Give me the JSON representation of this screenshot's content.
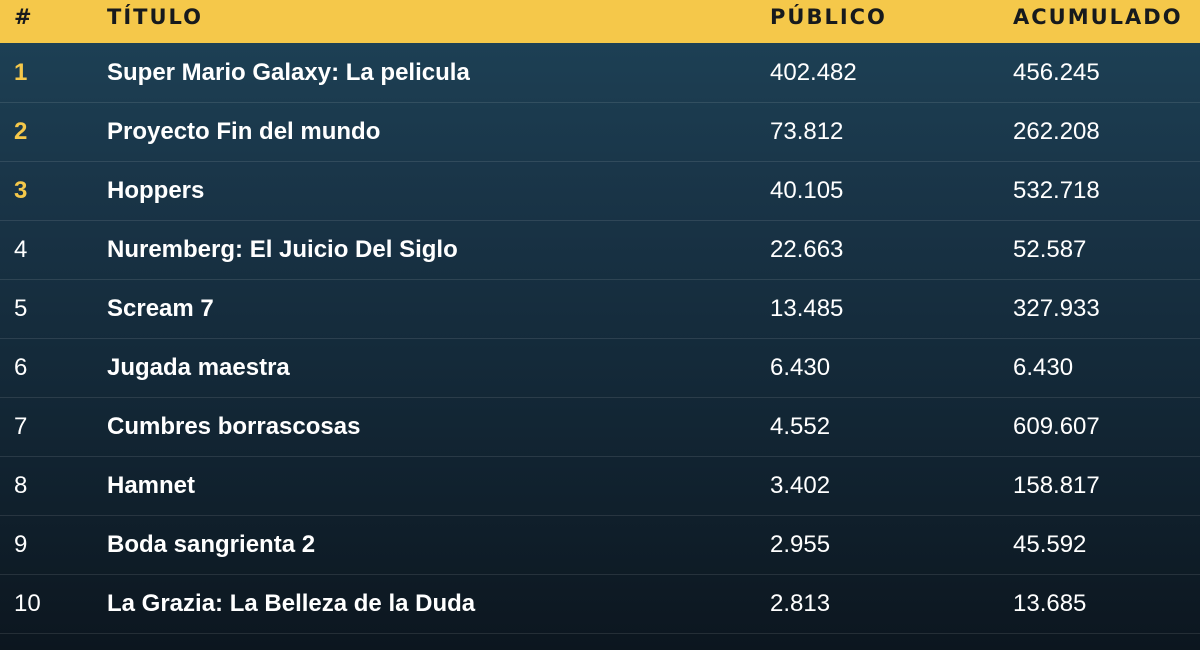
{
  "table": {
    "headers": {
      "rank": "#",
      "title": "TÍTULO",
      "public": "PÚBLICO",
      "total": "ACUMULADO"
    },
    "rows": [
      {
        "rank": "1",
        "title": "Super Mario Galaxy: La pelicula",
        "public": "402.482",
        "total": "456.245"
      },
      {
        "rank": "2",
        "title": "Proyecto Fin del mundo",
        "public": "73.812",
        "total": "262.208"
      },
      {
        "rank": "3",
        "title": "Hoppers",
        "public": "40.105",
        "total": "532.718"
      },
      {
        "rank": "4",
        "title": "Nuremberg: El Juicio Del Siglo",
        "public": "22.663",
        "total": "52.587"
      },
      {
        "rank": "5",
        "title": "Scream 7",
        "public": "13.485",
        "total": "327.933"
      },
      {
        "rank": "6",
        "title": "Jugada maestra",
        "public": "6.430",
        "total": "6.430"
      },
      {
        "rank": "7",
        "title": "Cumbres borrascosas",
        "public": "4.552",
        "total": "609.607"
      },
      {
        "rank": "8",
        "title": "Hamnet",
        "public": "3.402",
        "total": "158.817"
      },
      {
        "rank": "9",
        "title": "Boda sangrienta 2",
        "public": "2.955",
        "total": "45.592"
      },
      {
        "rank": "10",
        "title": "La Grazia: La Belleza de la Duda",
        "public": "2.813",
        "total": "13.685"
      }
    ]
  },
  "colors": {
    "header_background": "#f5c84a",
    "header_text": "#171a1d",
    "top_rank_highlight": "#f5c84a"
  }
}
